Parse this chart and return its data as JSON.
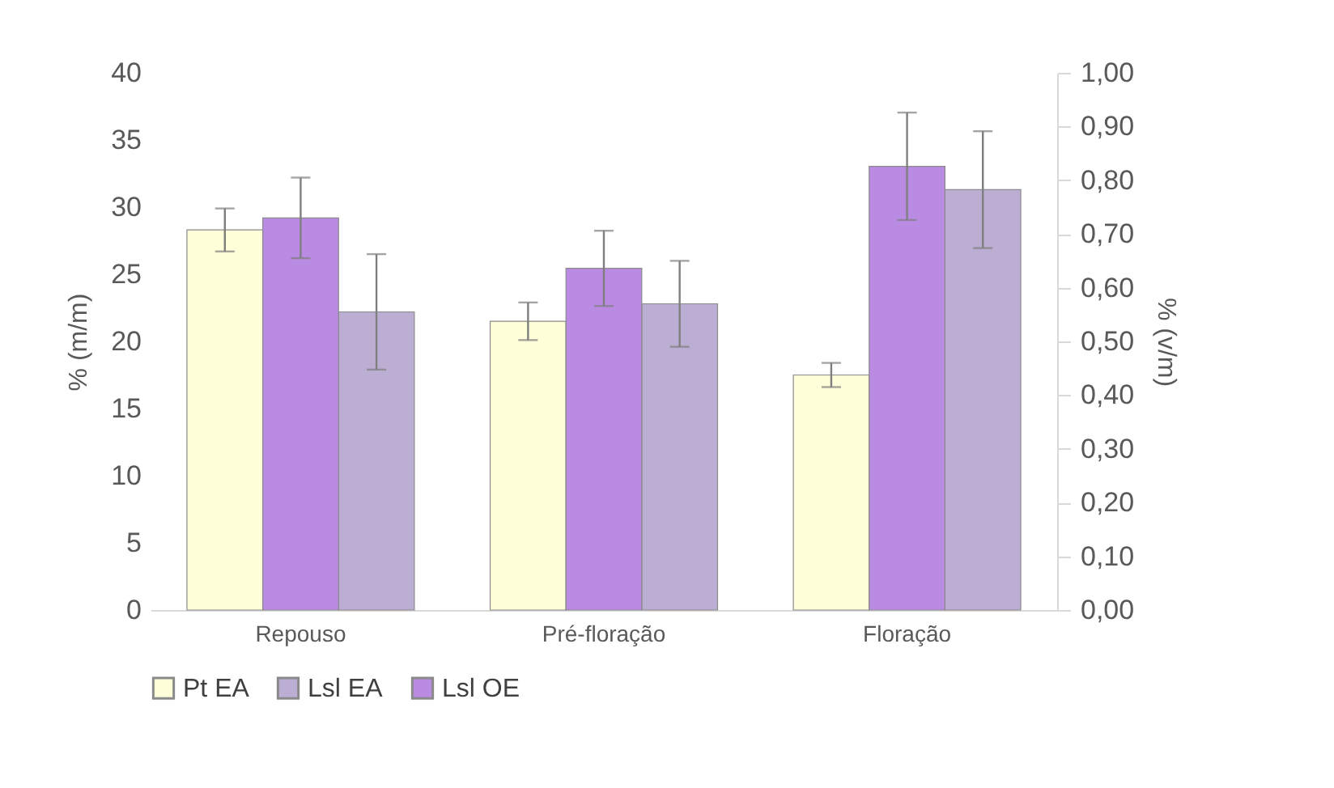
{
  "chart_data": {
    "type": "bar",
    "ylabel": "% (m/m)",
    "y2label": "% (v/m)",
    "categories": [
      "Repouso",
      "Pré-floração",
      "Floração"
    ],
    "series": [
      {
        "name": "Pt EA",
        "color": "#fefed8",
        "values": [
          28.3,
          21.5,
          17.5
        ],
        "errors": [
          1.6,
          1.4,
          0.9
        ]
      },
      {
        "name": "Lsl OE",
        "color": "#b98be2",
        "axis": "y2",
        "values": [
          0.73,
          0.636,
          0.826
        ],
        "errors": [
          0.075,
          0.07,
          0.1
        ]
      },
      {
        "name": "Lsl EA",
        "color": "#bcaed3",
        "values": [
          22.2,
          22.8,
          31.3
        ],
        "errors": [
          4.3,
          3.2,
          4.35
        ]
      }
    ],
    "ylim": [
      0,
      40
    ],
    "yticks": [
      0,
      5,
      10,
      15,
      20,
      25,
      30,
      35,
      40
    ],
    "y2lim": [
      0,
      1
    ],
    "y2ticks": [
      {
        "value": 0,
        "label": "0,00"
      },
      {
        "value": 0.1,
        "label": "0,10"
      },
      {
        "value": 0.2,
        "label": "0,20"
      },
      {
        "value": 0.3,
        "label": "0,30"
      },
      {
        "value": 0.4,
        "label": "0,40"
      },
      {
        "value": 0.5,
        "label": "0,50"
      },
      {
        "value": 0.6,
        "label": "0,60"
      },
      {
        "value": 0.7,
        "label": "0,70"
      },
      {
        "value": 0.8,
        "label": "0,80"
      },
      {
        "value": 0.9,
        "label": "0,90"
      },
      {
        "value": 1,
        "label": "1,00"
      }
    ],
    "grid": false,
    "legend": "bottom"
  }
}
